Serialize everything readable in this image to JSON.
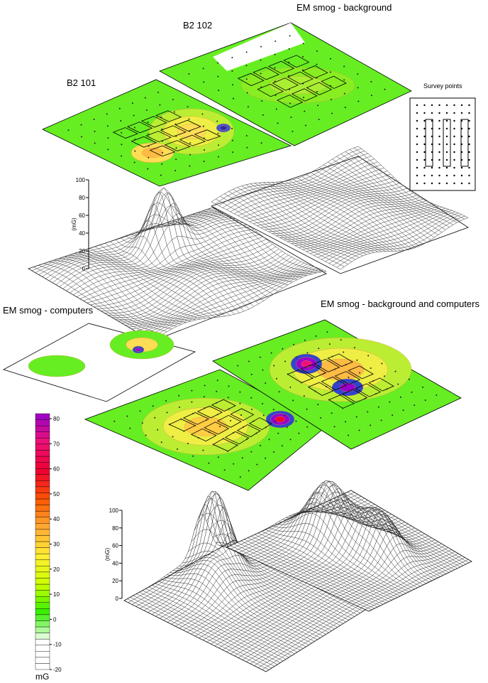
{
  "titles": {
    "background": "EM smog -  background",
    "computers": "EM smog - computers",
    "combined": "EM smog - background and computers"
  },
  "rooms": {
    "left": "B2 101",
    "right": "B2 102"
  },
  "survey_points": "Survey points",
  "colorbar": {
    "label": "mG",
    "lim": [
      -20,
      82
    ],
    "ticks": [
      -20,
      -10,
      0,
      10,
      20,
      30,
      40,
      50,
      60,
      70,
      80
    ],
    "colors": [
      "#ffffff",
      "#ffffff",
      "#33ee00",
      "#ccff00",
      "#ffee33",
      "#ffaa33",
      "#ff5500",
      "#ee0033",
      "#ee1177",
      "#9900cc"
    ]
  },
  "z_axes": [
    {
      "label": "(mG)",
      "lim": [
        0,
        100
      ],
      "ticks": [
        0,
        20,
        40,
        60,
        80,
        100
      ]
    },
    {
      "label": "(mG)",
      "lim": [
        0,
        100
      ],
      "ticks": [
        0,
        20,
        40,
        60,
        80,
        100
      ]
    }
  ]
}
